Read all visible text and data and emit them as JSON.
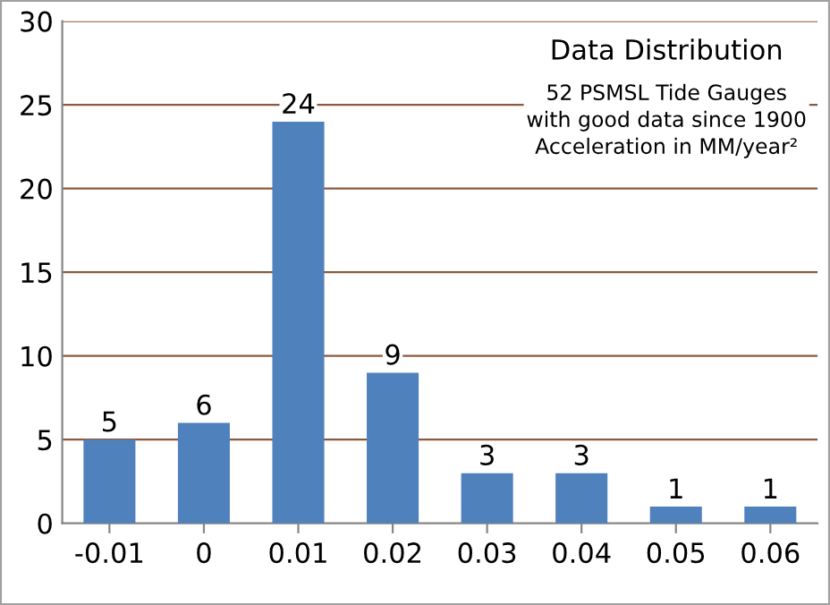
{
  "chart_data": {
    "type": "bar",
    "title": "Data Distribution",
    "subtitle": "52 PSMSL Tide Gauges\nwith good data since 1900\nAcceleration in MM/year²",
    "categories": [
      "-0.01",
      "0",
      "0.01",
      "0.02",
      "0.03",
      "0.04",
      "0.05",
      "0.06"
    ],
    "values": [
      5,
      6,
      24,
      9,
      3,
      3,
      1,
      1
    ],
    "color": "#4f81bd",
    "ylim": [
      0,
      30
    ],
    "yticks": [
      0,
      5,
      10,
      15,
      20,
      25,
      30
    ],
    "grid": "y",
    "data_labels": true
  }
}
